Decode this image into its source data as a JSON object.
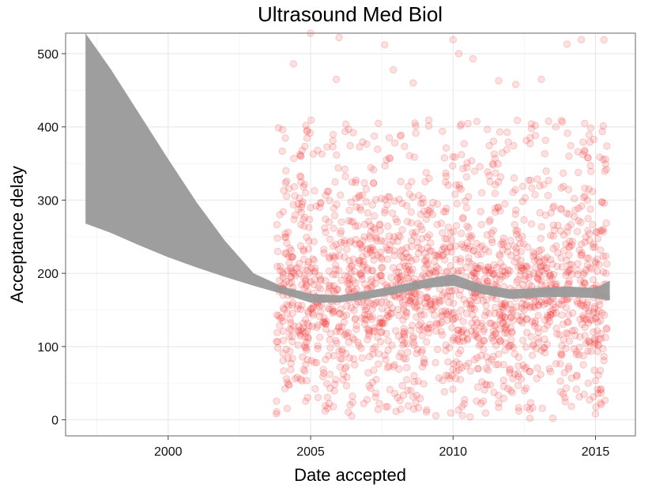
{
  "chart_data": {
    "type": "scatter",
    "title": "Ultrasound Med Biol",
    "xlabel": "Date accepted",
    "ylabel": "Acceptance delay",
    "xlim": [
      1996.4,
      2016.4
    ],
    "ylim": [
      -22,
      528
    ],
    "x_ticks": [
      2000,
      2005,
      2010,
      2015
    ],
    "y_ticks": [
      0,
      100,
      200,
      300,
      400,
      500
    ],
    "x_tick_labels": [
      "2000",
      "2005",
      "2010",
      "2015"
    ],
    "y_tick_labels": [
      "0",
      "100",
      "200",
      "300",
      "400",
      "500"
    ],
    "grid": true,
    "point_color": "#ee2222",
    "point_opacity": 0.14,
    "band_color": "#999999",
    "point_cloud": {
      "x_range": [
        2003.8,
        2015.4
      ],
      "typical_y_range": [
        50,
        300
      ],
      "approx_count": 1900
    },
    "outlier_points": [
      {
        "x": 2003.8,
        "y": 8
      },
      {
        "x": 2005.0,
        "y": 528
      },
      {
        "x": 2006.0,
        "y": 522
      },
      {
        "x": 2004.4,
        "y": 486
      },
      {
        "x": 2005.9,
        "y": 465
      },
      {
        "x": 2007.6,
        "y": 512
      },
      {
        "x": 2007.9,
        "y": 478
      },
      {
        "x": 2008.6,
        "y": 460
      },
      {
        "x": 2010.0,
        "y": 519
      },
      {
        "x": 2010.2,
        "y": 500
      },
      {
        "x": 2010.7,
        "y": 493
      },
      {
        "x": 2011.6,
        "y": 463
      },
      {
        "x": 2012.2,
        "y": 458
      },
      {
        "x": 2013.1,
        "y": 465
      },
      {
        "x": 2014.5,
        "y": 519
      },
      {
        "x": 2014.0,
        "y": 513
      },
      {
        "x": 2015.3,
        "y": 519
      },
      {
        "x": 2005.8,
        "y": 18
      },
      {
        "x": 2007.7,
        "y": 18
      },
      {
        "x": 2010.6,
        "y": 4
      },
      {
        "x": 2012.7,
        "y": 2
      },
      {
        "x": 2013.5,
        "y": 2
      },
      {
        "x": 2015.0,
        "y": 8
      },
      {
        "x": 2015.2,
        "y": 42
      }
    ],
    "smooth_band": {
      "x": [
        1997.1,
        1998,
        1999,
        2000,
        2001,
        2002,
        2003,
        2004,
        2005,
        2006,
        2007,
        2008,
        2009,
        2010,
        2011,
        2012,
        2013,
        2014,
        2015,
        2015.5
      ],
      "lower": [
        268,
        255,
        238,
        222,
        208,
        195,
        183,
        172,
        160,
        160,
        165,
        172,
        180,
        183,
        172,
        165,
        167,
        168,
        166,
        163
      ],
      "upper": [
        528,
        478,
        417,
        356,
        297,
        244,
        200,
        182,
        172,
        170,
        176,
        183,
        192,
        199,
        185,
        178,
        180,
        182,
        180,
        190
      ]
    }
  }
}
